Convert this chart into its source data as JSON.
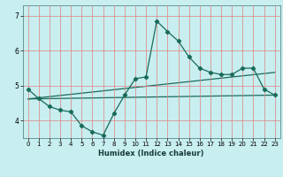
{
  "title": "",
  "xlabel": "Humidex (Indice chaleur)",
  "background_color": "#c8eef0",
  "grid_color": "#e08080",
  "line_color": "#1a6b5a",
  "xlim": [
    -0.5,
    23.5
  ],
  "ylim": [
    3.5,
    7.3
  ],
  "yticks": [
    4,
    5,
    6,
    7
  ],
  "xticks": [
    0,
    1,
    2,
    3,
    4,
    5,
    6,
    7,
    8,
    9,
    10,
    11,
    12,
    13,
    14,
    15,
    16,
    17,
    18,
    19,
    20,
    21,
    22,
    23
  ],
  "curve1_x": [
    0,
    1,
    2,
    3,
    4,
    5,
    6,
    7,
    8,
    9,
    10,
    11,
    12,
    13,
    14,
    15,
    16,
    17,
    18,
    19,
    20,
    21,
    22,
    23
  ],
  "curve1_y": [
    4.9,
    4.63,
    4.4,
    4.3,
    4.25,
    3.85,
    3.68,
    3.58,
    4.2,
    4.73,
    5.2,
    5.25,
    6.85,
    6.55,
    6.28,
    5.82,
    5.5,
    5.38,
    5.32,
    5.32,
    5.5,
    5.5,
    4.9,
    4.73
  ],
  "curve2_x": [
    0,
    23
  ],
  "curve2_y": [
    4.62,
    4.73
  ],
  "curve3_x": [
    0,
    23
  ],
  "curve3_y": [
    4.62,
    5.38
  ]
}
